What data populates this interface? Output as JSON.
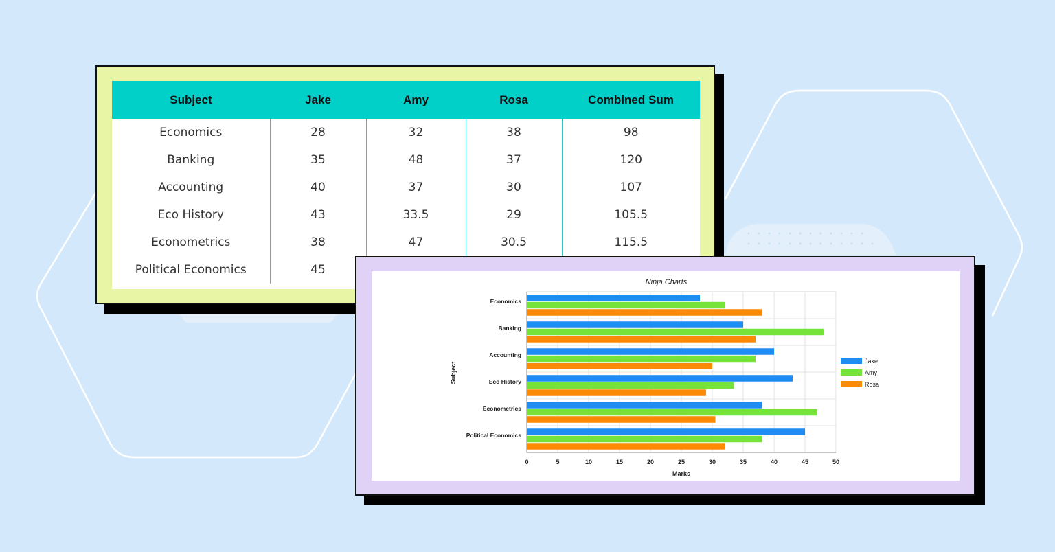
{
  "table": {
    "headers": [
      "Subject",
      "Jake",
      "Amy",
      "Rosa",
      "Combined Sum"
    ],
    "rows": [
      [
        "Economics",
        "28",
        "32",
        "38",
        "98"
      ],
      [
        "Banking",
        "35",
        "48",
        "37",
        "120"
      ],
      [
        "Accounting",
        "40",
        "37",
        "30",
        "107"
      ],
      [
        "Eco History",
        "43",
        "33.5",
        "29",
        "105.5"
      ],
      [
        "Econometrics",
        "38",
        "47",
        "30.5",
        "115.5"
      ],
      [
        "Political Economics",
        "45",
        "",
        "",
        ""
      ]
    ]
  },
  "chart_data": {
    "type": "bar",
    "orientation": "horizontal",
    "title": "Ninja Charts",
    "xlabel": "Marks",
    "ylabel": "Subject",
    "categories": [
      "Economics",
      "Banking",
      "Accounting",
      "Eco History",
      "Econometrics",
      "Political Economics"
    ],
    "series": [
      {
        "name": "Jake",
        "color": "#1e8cf2",
        "values": [
          28,
          35,
          40,
          43,
          38,
          45
        ]
      },
      {
        "name": "Amy",
        "color": "#75e33a",
        "values": [
          32,
          48,
          37,
          33.5,
          47,
          38
        ]
      },
      {
        "name": "Rosa",
        "color": "#fb8a06",
        "values": [
          38,
          37,
          30,
          29,
          30.5,
          32
        ]
      }
    ],
    "xlim": [
      0,
      50
    ],
    "xticks": [
      0,
      5,
      10,
      15,
      20,
      25,
      30,
      35,
      40,
      45,
      50
    ],
    "grid": true,
    "legend": "right"
  }
}
